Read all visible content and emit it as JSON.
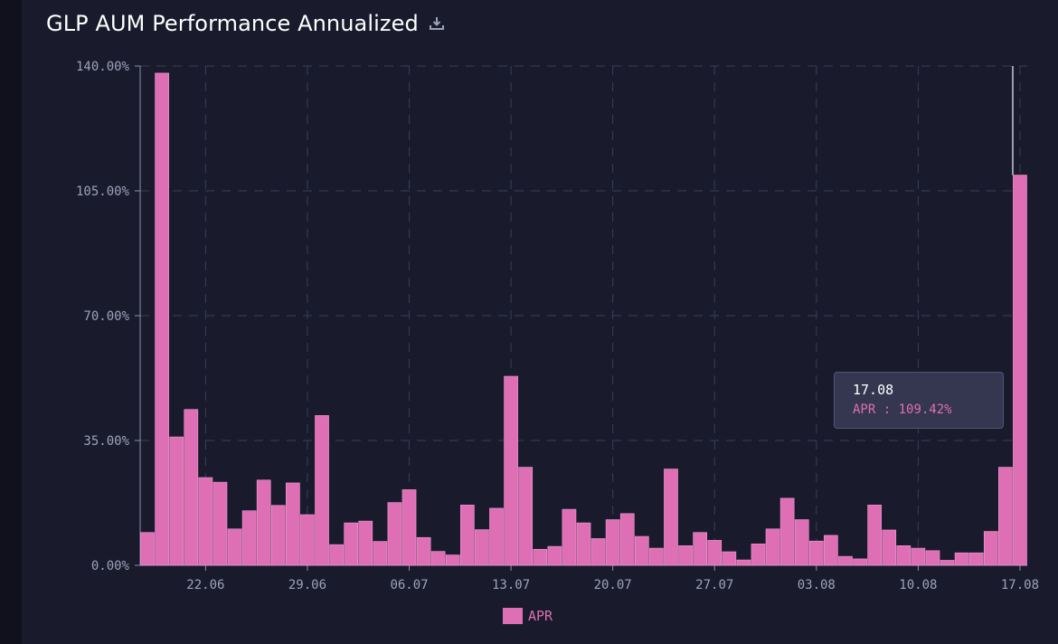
{
  "header": {
    "title": "GLP AUM Performance Annualized",
    "download_icon": "download-icon"
  },
  "tooltip": {
    "date": "17.08",
    "series": "APR",
    "separator": " : ",
    "value": "109.42%"
  },
  "colors": {
    "bar": "#de6fb5",
    "bar_border": "#f49ad2",
    "grid": "#3a3d55",
    "axis": "#8c8fa6",
    "text": "#9ea2b8",
    "bg": "#191b2d"
  },
  "chart_data": {
    "type": "bar",
    "title": "GLP AUM Performance Annualized",
    "xlabel": "",
    "ylabel": "",
    "ylim": [
      0,
      140
    ],
    "yticks": [
      0,
      35,
      70,
      105,
      140
    ],
    "ytick_labels": [
      "0.00%",
      "35.00%",
      "70.00%",
      "105.00%",
      "140.00%"
    ],
    "xtick_labels": [
      "22.06",
      "29.06",
      "06.07",
      "13.07",
      "20.07",
      "27.07",
      "03.08",
      "10.08",
      "17.08"
    ],
    "legend": {
      "position": "bottom-center",
      "entries": [
        "APR"
      ]
    },
    "grid": true,
    "series": [
      {
        "name": "APR",
        "values": [
          9.2,
          138.0,
          36.0,
          43.7,
          24.6,
          23.3,
          10.2,
          15.3,
          23.9,
          16.8,
          23.1,
          14.2,
          42.0,
          5.8,
          11.9,
          12.4,
          6.7,
          17.6,
          21.2,
          7.8,
          3.9,
          2.9,
          16.9,
          10.0,
          16.0,
          53.0,
          27.5,
          4.5,
          5.3,
          15.7,
          11.9,
          7.5,
          12.8,
          14.5,
          8.1,
          4.8,
          27.0,
          5.5,
          9.2,
          7.0,
          3.8,
          1.5,
          6.0,
          10.2,
          18.8,
          12.8,
          6.8,
          8.4,
          2.5,
          1.8,
          16.9,
          9.9,
          5.5,
          4.8,
          4.1,
          1.4,
          3.5,
          3.5,
          9.5,
          27.5,
          109.42
        ]
      }
    ]
  }
}
